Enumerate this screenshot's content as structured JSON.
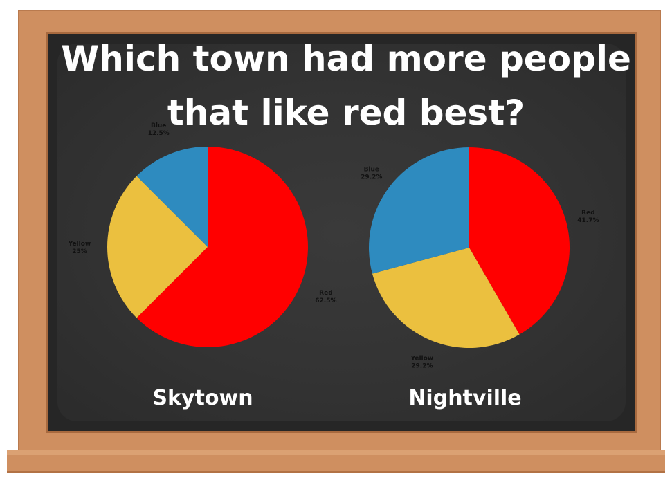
{
  "title": "Which town had more people that like red best?",
  "colors": {
    "red": "#ff0000",
    "yellow": "#ebc03f",
    "blue": "#2e8bbf",
    "board": "#333333",
    "frame": "#cf8f60"
  },
  "chart_data": [
    {
      "type": "pie",
      "title": "Skytown",
      "slices": [
        {
          "label": "Red",
          "value": 62.5,
          "value_label": "62.5%",
          "color": "#ff0000"
        },
        {
          "label": "Yellow",
          "value": 25,
          "value_label": "25%",
          "color": "#ebc03f"
        },
        {
          "label": "Blue",
          "value": 12.5,
          "value_label": "12.5%",
          "color": "#2e8bbf"
        }
      ],
      "start": "12 o'clock",
      "direction": "clockwise"
    },
    {
      "type": "pie",
      "title": "Nightville",
      "slices": [
        {
          "label": "Red",
          "value": 41.7,
          "value_label": "41.7%",
          "color": "#ff0000"
        },
        {
          "label": "Yellow",
          "value": 29.2,
          "value_label": "29.2%",
          "color": "#ebc03f"
        },
        {
          "label": "Blue",
          "value": 29.2,
          "value_label": "29.2%",
          "color": "#2e8bbf"
        }
      ],
      "start": "12 o'clock",
      "direction": "clockwise"
    }
  ]
}
